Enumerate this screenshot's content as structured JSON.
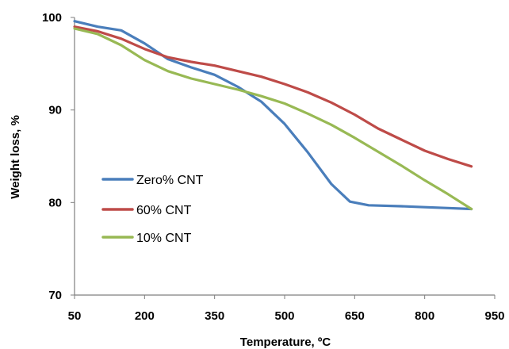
{
  "chart_data": {
    "type": "line",
    "title": "",
    "xlabel": "Temperature, ºC",
    "ylabel": "Weight loss, %",
    "xlim": [
      50,
      950
    ],
    "ylim": [
      70,
      100
    ],
    "x_ticks": [
      50,
      200,
      350,
      500,
      650,
      800,
      950
    ],
    "y_ticks": [
      70,
      80,
      90,
      100
    ],
    "x_tick_labels": [
      "50",
      "200",
      "350",
      "500",
      "650",
      "800",
      "950"
    ],
    "y_tick_labels": [
      "70",
      "80",
      "90",
      "100"
    ],
    "grid": false,
    "legend_position": "center-left",
    "series": [
      {
        "name": "Zero% CNT",
        "color": "#4a7ebb",
        "points": [
          [
            50,
            99.6
          ],
          [
            100,
            99.0
          ],
          [
            150,
            98.6
          ],
          [
            200,
            97.2
          ],
          [
            250,
            95.5
          ],
          [
            300,
            94.6
          ],
          [
            350,
            93.8
          ],
          [
            400,
            92.5
          ],
          [
            450,
            90.9
          ],
          [
            500,
            88.5
          ],
          [
            550,
            85.4
          ],
          [
            600,
            82.0
          ],
          [
            640,
            80.1
          ],
          [
            680,
            79.7
          ],
          [
            750,
            79.6
          ],
          [
            800,
            79.5
          ],
          [
            850,
            79.4
          ],
          [
            900,
            79.3
          ]
        ]
      },
      {
        "name": "60% CNT",
        "color": "#be4b48",
        "points": [
          [
            50,
            99.0
          ],
          [
            100,
            98.5
          ],
          [
            150,
            97.7
          ],
          [
            200,
            96.6
          ],
          [
            250,
            95.7
          ],
          [
            300,
            95.2
          ],
          [
            350,
            94.8
          ],
          [
            400,
            94.2
          ],
          [
            450,
            93.6
          ],
          [
            500,
            92.8
          ],
          [
            550,
            91.9
          ],
          [
            600,
            90.8
          ],
          [
            650,
            89.5
          ],
          [
            700,
            88.0
          ],
          [
            750,
            86.8
          ],
          [
            800,
            85.6
          ],
          [
            850,
            84.7
          ],
          [
            900,
            83.9
          ]
        ]
      },
      {
        "name": "10% CNT",
        "color": "#98b954",
        "points": [
          [
            50,
            98.8
          ],
          [
            100,
            98.2
          ],
          [
            150,
            97.0
          ],
          [
            200,
            95.4
          ],
          [
            250,
            94.2
          ],
          [
            300,
            93.4
          ],
          [
            350,
            92.8
          ],
          [
            400,
            92.2
          ],
          [
            450,
            91.5
          ],
          [
            500,
            90.7
          ],
          [
            550,
            89.6
          ],
          [
            600,
            88.4
          ],
          [
            650,
            87.0
          ],
          [
            700,
            85.5
          ],
          [
            750,
            84.0
          ],
          [
            800,
            82.4
          ],
          [
            850,
            80.9
          ],
          [
            900,
            79.3
          ]
        ]
      }
    ]
  }
}
